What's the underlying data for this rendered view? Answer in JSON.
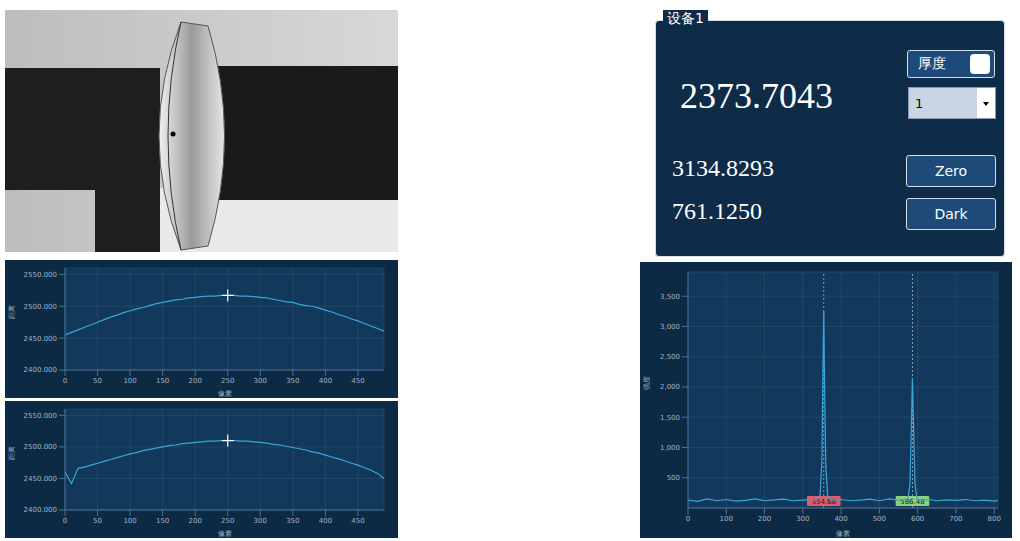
{
  "panel": {
    "title": "设备1",
    "value": "2373.7043",
    "toggle_label": "厚度",
    "select_value": "1",
    "readings": [
      "3134.8293",
      "761.1250"
    ],
    "buttons": [
      "Zero",
      "Dark"
    ]
  },
  "chart_data": [
    {
      "type": "line",
      "x_label": "像素",
      "y_label": "距离",
      "x": [
        0,
        10,
        20,
        30,
        40,
        50,
        60,
        70,
        80,
        90,
        100,
        110,
        120,
        130,
        140,
        150,
        160,
        170,
        180,
        190,
        200,
        210,
        220,
        230,
        240,
        250,
        260,
        270,
        280,
        290,
        300,
        310,
        320,
        330,
        340,
        350,
        360,
        370,
        380,
        390,
        400,
        410,
        420,
        430,
        440,
        450,
        460,
        470,
        480,
        490
      ],
      "values": [
        2455,
        2459,
        2463,
        2467,
        2471,
        2475,
        2479,
        2483,
        2486,
        2490,
        2493,
        2496,
        2498,
        2501,
        2504,
        2506,
        2508,
        2510,
        2511,
        2513,
        2514,
        2515,
        2516,
        2516,
        2517,
        2517,
        2517,
        2516,
        2516,
        2515,
        2514,
        2513,
        2511,
        2509,
        2507,
        2506,
        2503,
        2501,
        2500,
        2497,
        2494,
        2491,
        2487,
        2484,
        2480,
        2477,
        2473,
        2469,
        2465,
        2461
      ],
      "color": "#3aa6d8",
      "xlim": [
        0,
        490
      ],
      "xticks": [
        0,
        50,
        100,
        150,
        200,
        250,
        300,
        350,
        400,
        450
      ],
      "ylim": [
        2400,
        2560
      ],
      "yticks": [
        {
          "value": 2400,
          "label": "2400.000"
        },
        {
          "value": 2450,
          "label": "2450.000"
        },
        {
          "value": 2500,
          "label": "2500.000"
        },
        {
          "value": 2550,
          "label": "2550.000"
        }
      ],
      "grid": true,
      "crosshair": {
        "x": 250,
        "y": 2517
      }
    },
    {
      "type": "line",
      "x_label": "像素",
      "y_label": "距离",
      "x": [
        0,
        10,
        20,
        30,
        40,
        50,
        60,
        70,
        80,
        90,
        100,
        110,
        120,
        130,
        140,
        150,
        160,
        170,
        180,
        190,
        200,
        210,
        220,
        230,
        240,
        250,
        260,
        270,
        280,
        290,
        300,
        310,
        320,
        330,
        340,
        350,
        360,
        370,
        380,
        390,
        400,
        410,
        420,
        430,
        440,
        450,
        460,
        470,
        480,
        490
      ],
      "values": [
        2460,
        2442,
        2466,
        2468,
        2471,
        2474,
        2477,
        2480,
        2483,
        2486,
        2489,
        2491,
        2494,
        2496,
        2498,
        2500,
        2502,
        2503,
        2505,
        2506,
        2507,
        2508,
        2509,
        2509,
        2510,
        2510,
        2510,
        2509,
        2509,
        2508,
        2507,
        2506,
        2504,
        2503,
        2501,
        2499,
        2497,
        2495,
        2492,
        2490,
        2487,
        2484,
        2481,
        2478,
        2474,
        2471,
        2467,
        2463,
        2458,
        2450
      ],
      "color": "#3aa6d8",
      "xlim": [
        0,
        490
      ],
      "xticks": [
        0,
        50,
        100,
        150,
        200,
        250,
        300,
        350,
        400,
        450
      ],
      "ylim": [
        2400,
        2560
      ],
      "yticks": [
        {
          "value": 2400,
          "label": "2400.000"
        },
        {
          "value": 2450,
          "label": "2450.000"
        },
        {
          "value": 2500,
          "label": "2500.000"
        },
        {
          "value": 2550,
          "label": "2550.000"
        }
      ],
      "grid": true,
      "crosshair": {
        "x": 250,
        "y": 2510
      }
    },
    {
      "type": "line",
      "x_label": "像素",
      "y_label": "强度",
      "x": [
        0,
        25,
        50,
        75,
        100,
        125,
        150,
        175,
        200,
        225,
        250,
        275,
        300,
        320,
        335,
        345,
        350,
        352,
        354.68,
        357,
        360,
        365,
        375,
        400,
        425,
        450,
        475,
        500,
        525,
        550,
        565,
        575,
        580,
        583,
        586.48,
        590,
        593,
        598,
        610,
        630,
        650,
        675,
        700,
        725,
        750,
        775,
        800,
        810
      ],
      "values": [
        130,
        110,
        150,
        120,
        140,
        115,
        125,
        150,
        120,
        135,
        145,
        120,
        130,
        140,
        130,
        200,
        800,
        2000,
        3250,
        2000,
        700,
        200,
        130,
        140,
        120,
        130,
        145,
        120,
        150,
        130,
        140,
        160,
        400,
        1200,
        2150,
        1200,
        400,
        150,
        130,
        140,
        120,
        135,
        125,
        140,
        120,
        130,
        115,
        125
      ],
      "color": "#3aa6d8",
      "xlim": [
        0,
        810
      ],
      "xticks": [
        0,
        100,
        200,
        300,
        400,
        500,
        600,
        700,
        800
      ],
      "ylim": [
        0,
        3900
      ],
      "yticks": [
        500,
        {
          "value": 1000,
          "label": "1,000"
        },
        {
          "value": 1500,
          "label": "1,500"
        },
        {
          "value": 2000,
          "label": "2,000"
        },
        {
          "value": 2500,
          "label": "2,500"
        },
        {
          "value": 3000,
          "label": "3,000"
        },
        {
          "value": 3500,
          "label": "3,500"
        }
      ],
      "grid": true,
      "peaks": [
        {
          "x": 354.68,
          "color": "#e05a6a"
        },
        {
          "x": 586.48,
          "color": "#8fd07a"
        }
      ]
    }
  ]
}
